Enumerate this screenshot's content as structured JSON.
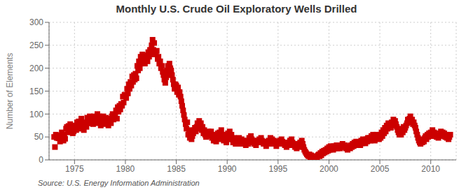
{
  "chart_data": {
    "type": "scatter",
    "title": "Monthly U.S. Crude Oil Exploratory Wells Drilled",
    "ylabel": "Number of Elements",
    "annotation": "Source: U.S. Energy Information Administration",
    "color": "#cc0000",
    "marker": "square",
    "grid": true,
    "xlim": [
      1972.5,
      2012.5
    ],
    "xticks": [
      1975,
      1980,
      1985,
      1990,
      1995,
      2000,
      2005,
      2010
    ],
    "ylim": [
      0,
      300
    ],
    "yticks": [
      0,
      50,
      100,
      150,
      200,
      250,
      300
    ],
    "x": [
      1973.0,
      1973.08,
      1973.17,
      1973.25,
      1973.33,
      1973.42,
      1973.5,
      1973.58,
      1973.67,
      1973.75,
      1973.83,
      1973.92,
      1974.0,
      1974.08,
      1974.17,
      1974.25,
      1974.33,
      1974.42,
      1974.5,
      1974.58,
      1974.67,
      1974.75,
      1974.83,
      1974.92,
      1975.0,
      1975.08,
      1975.17,
      1975.25,
      1975.33,
      1975.42,
      1975.5,
      1975.58,
      1975.67,
      1975.75,
      1975.83,
      1975.92,
      1976.0,
      1976.08,
      1976.17,
      1976.25,
      1976.33,
      1976.42,
      1976.5,
      1976.58,
      1976.67,
      1976.75,
      1976.83,
      1976.92,
      1977.0,
      1977.08,
      1977.17,
      1977.25,
      1977.33,
      1977.42,
      1977.5,
      1977.58,
      1977.67,
      1977.75,
      1977.83,
      1977.92,
      1978.0,
      1978.08,
      1978.17,
      1978.25,
      1978.33,
      1978.42,
      1978.5,
      1978.58,
      1978.67,
      1978.75,
      1978.83,
      1978.92,
      1979.0,
      1979.08,
      1979.17,
      1979.25,
      1979.33,
      1979.42,
      1979.5,
      1979.58,
      1979.67,
      1979.75,
      1979.83,
      1979.92,
      1980.0,
      1980.08,
      1980.17,
      1980.25,
      1980.33,
      1980.42,
      1980.5,
      1980.58,
      1980.67,
      1980.75,
      1980.83,
      1980.92,
      1981.0,
      1981.08,
      1981.17,
      1981.25,
      1981.33,
      1981.42,
      1981.5,
      1981.58,
      1981.67,
      1981.75,
      1981.83,
      1981.92,
      1982.0,
      1982.08,
      1982.17,
      1982.25,
      1982.33,
      1982.42,
      1982.5,
      1982.58,
      1982.67,
      1982.75,
      1982.83,
      1982.92,
      1983.0,
      1983.08,
      1983.17,
      1983.25,
      1983.33,
      1983.42,
      1983.5,
      1983.58,
      1983.67,
      1983.75,
      1983.83,
      1983.92,
      1984.0,
      1984.08,
      1984.17,
      1984.25,
      1984.33,
      1984.42,
      1984.5,
      1984.58,
      1984.67,
      1984.75,
      1984.83,
      1984.92,
      1985.0,
      1985.08,
      1985.17,
      1985.25,
      1985.33,
      1985.42,
      1985.5,
      1985.58,
      1985.67,
      1985.75,
      1985.83,
      1985.92,
      1986.0,
      1986.08,
      1986.17,
      1986.25,
      1986.33,
      1986.42,
      1986.5,
      1986.58,
      1986.67,
      1986.75,
      1986.83,
      1986.92,
      1987.0,
      1987.08,
      1987.17,
      1987.25,
      1987.33,
      1987.42,
      1987.5,
      1987.58,
      1987.67,
      1987.75,
      1987.83,
      1987.92,
      1988.0,
      1988.08,
      1988.17,
      1988.25,
      1988.33,
      1988.42,
      1988.5,
      1988.58,
      1988.67,
      1988.75,
      1988.83,
      1988.92,
      1989.0,
      1989.08,
      1989.17,
      1989.25,
      1989.33,
      1989.42,
      1989.5,
      1989.58,
      1989.67,
      1989.75,
      1989.83,
      1989.92,
      1990.0,
      1990.08,
      1990.17,
      1990.25,
      1990.33,
      1990.42,
      1990.5,
      1990.58,
      1990.67,
      1990.75,
      1990.83,
      1990.92,
      1991.0,
      1991.08,
      1991.17,
      1991.25,
      1991.33,
      1991.42,
      1991.5,
      1991.58,
      1991.67,
      1991.75,
      1991.83,
      1991.92,
      1992.0,
      1992.08,
      1992.17,
      1992.25,
      1992.33,
      1992.42,
      1992.5,
      1992.58,
      1992.67,
      1992.75,
      1992.83,
      1992.92,
      1993.0,
      1993.08,
      1993.17,
      1993.25,
      1993.33,
      1993.42,
      1993.5,
      1993.58,
      1993.67,
      1993.75,
      1993.83,
      1993.92,
      1994.0,
      1994.08,
      1994.17,
      1994.25,
      1994.33,
      1994.42,
      1994.5,
      1994.58,
      1994.67,
      1994.75,
      1994.83,
      1994.92,
      1995.0,
      1995.08,
      1995.17,
      1995.25,
      1995.33,
      1995.42,
      1995.5,
      1995.58,
      1995.67,
      1995.75,
      1995.83,
      1995.92,
      1996.0,
      1996.08,
      1996.17,
      1996.25,
      1996.33,
      1996.42,
      1996.5,
      1996.58,
      1996.67,
      1996.75,
      1996.83,
      1996.92,
      1997.0,
      1997.08,
      1997.17,
      1997.25,
      1997.33,
      1997.42,
      1997.5,
      1997.58,
      1997.67,
      1997.75,
      1997.83,
      1997.92,
      1998.0,
      1998.08,
      1998.17,
      1998.25,
      1998.33,
      1998.42,
      1998.5,
      1998.58,
      1998.67,
      1998.75,
      1998.83,
      1998.92,
      1999.0,
      1999.08,
      1999.17,
      1999.25,
      1999.33,
      1999.42,
      1999.5,
      1999.58,
      1999.67,
      1999.75,
      1999.83,
      1999.92,
      2000.0,
      2000.08,
      2000.17,
      2000.25,
      2000.33,
      2000.42,
      2000.5,
      2000.58,
      2000.67,
      2000.75,
      2000.83,
      2000.92,
      2001.0,
      2001.08,
      2001.17,
      2001.25,
      2001.33,
      2001.42,
      2001.5,
      2001.58,
      2001.67,
      2001.75,
      2001.83,
      2001.92,
      2002.0,
      2002.08,
      2002.17,
      2002.25,
      2002.33,
      2002.42,
      2002.5,
      2002.58,
      2002.67,
      2002.75,
      2002.83,
      2002.92,
      2003.0,
      2003.08,
      2003.17,
      2003.25,
      2003.33,
      2003.42,
      2003.5,
      2003.58,
      2003.67,
      2003.75,
      2003.83,
      2003.92,
      2004.0,
      2004.08,
      2004.17,
      2004.25,
      2004.33,
      2004.42,
      2004.5,
      2004.58,
      2004.67,
      2004.75,
      2004.83,
      2004.92,
      2005.0,
      2005.08,
      2005.17,
      2005.25,
      2005.33,
      2005.42,
      2005.5,
      2005.58,
      2005.67,
      2005.75,
      2005.83,
      2005.92,
      2006.0,
      2006.08,
      2006.17,
      2006.25,
      2006.33,
      2006.42,
      2006.5,
      2006.58,
      2006.67,
      2006.75,
      2006.83,
      2006.92,
      2007.0,
      2007.08,
      2007.17,
      2007.25,
      2007.33,
      2007.42,
      2007.5,
      2007.58,
      2007.67,
      2007.75,
      2007.83,
      2007.92,
      2008.0,
      2008.08,
      2008.17,
      2008.25,
      2008.33,
      2008.42,
      2008.5,
      2008.58,
      2008.67,
      2008.75,
      2008.83,
      2008.92,
      2009.0,
      2009.08,
      2009.17,
      2009.25,
      2009.33,
      2009.42,
      2009.5,
      2009.58,
      2009.67,
      2009.75,
      2009.83,
      2009.92,
      2010.0,
      2010.08,
      2010.17,
      2010.25,
      2010.33,
      2010.42,
      2010.5,
      2010.58,
      2010.67,
      2010.75,
      2010.83,
      2010.92,
      2011.0,
      2011.08,
      2011.17,
      2011.25,
      2011.33,
      2011.42,
      2011.5,
      2011.58,
      2011.67,
      2011.75,
      2011.83,
      2011.92
    ],
    "values": [
      50,
      28,
      55,
      48,
      52,
      47,
      53,
      40,
      50,
      60,
      44,
      42,
      55,
      46,
      68,
      72,
      65,
      74,
      60,
      78,
      68,
      70,
      58,
      62,
      75,
      72,
      65,
      82,
      80,
      84,
      78,
      68,
      90,
      70,
      80,
      65,
      75,
      82,
      72,
      92,
      80,
      88,
      95,
      80,
      85,
      92,
      78,
      95,
      88,
      92,
      80,
      100,
      85,
      95,
      90,
      75,
      92,
      85,
      95,
      78,
      82,
      92,
      80,
      85,
      75,
      88,
      90,
      80,
      95,
      100,
      88,
      98,
      95,
      108,
      90,
      115,
      105,
      118,
      110,
      122,
      118,
      138,
      125,
      142,
      142,
      135,
      155,
      145,
      165,
      155,
      170,
      162,
      182,
      170,
      185,
      175,
      188,
      178,
      205,
      195,
      215,
      200,
      225,
      210,
      230,
      215,
      225,
      210,
      218,
      228,
      215,
      235,
      225,
      240,
      230,
      250,
      262,
      240,
      255,
      235,
      230,
      238,
      220,
      225,
      210,
      215,
      200,
      205,
      192,
      185,
      175,
      168,
      180,
      195,
      205,
      185,
      210,
      200,
      195,
      185,
      175,
      165,
      155,
      165,
      162,
      148,
      158,
      142,
      148,
      138,
      128,
      118,
      108,
      98,
      88,
      78,
      68,
      82,
      55,
      65,
      48,
      55,
      45,
      52,
      58,
      65,
      70,
      62,
      72,
      80,
      68,
      85,
      75,
      80,
      65,
      72,
      58,
      65,
      55,
      50,
      58,
      52,
      62,
      55,
      58,
      62,
      48,
      55,
      42,
      50,
      45,
      40,
      52,
      58,
      45,
      60,
      52,
      65,
      55,
      48,
      42,
      55,
      45,
      38,
      52,
      58,
      45,
      62,
      50,
      55,
      45,
      38,
      48,
      42,
      35,
      40,
      42,
      38,
      48,
      42,
      35,
      45,
      38,
      42,
      35,
      40,
      32,
      38,
      42,
      35,
      48,
      40,
      52,
      45,
      38,
      42,
      35,
      40,
      32,
      38,
      42,
      38,
      45,
      40,
      48,
      42,
      38,
      35,
      40,
      35,
      30,
      35,
      38,
      42,
      35,
      48,
      40,
      45,
      38,
      42,
      35,
      38,
      30,
      35,
      40,
      35,
      42,
      38,
      45,
      40,
      35,
      38,
      32,
      35,
      28,
      32,
      38,
      32,
      42,
      35,
      45,
      38,
      32,
      35,
      28,
      32,
      25,
      30,
      35,
      28,
      38,
      32,
      42,
      35,
      28,
      22,
      18,
      15,
      12,
      10,
      8,
      12,
      6,
      10,
      5,
      8,
      4,
      7,
      5,
      8,
      6,
      10,
      12,
      8,
      15,
      10,
      18,
      14,
      20,
      16,
      22,
      18,
      25,
      20,
      28,
      22,
      30,
      25,
      28,
      22,
      30,
      25,
      28,
      32,
      25,
      30,
      28,
      25,
      32,
      28,
      35,
      30,
      28,
      32,
      25,
      28,
      22,
      28,
      30,
      25,
      32,
      28,
      35,
      30,
      38,
      32,
      40,
      35,
      38,
      32,
      38,
      32,
      42,
      36,
      45,
      38,
      42,
      36,
      45,
      40,
      48,
      42,
      48,
      42,
      52,
      45,
      55,
      48,
      42,
      50,
      55,
      48,
      52,
      45,
      55,
      48,
      60,
      52,
      65,
      58,
      70,
      62,
      75,
      68,
      80,
      72,
      78,
      70,
      82,
      75,
      88,
      80,
      85,
      78,
      72,
      65,
      60,
      55,
      62,
      55,
      68,
      60,
      72,
      65,
      70,
      75,
      80,
      88,
      82,
      90,
      95,
      85,
      88,
      78,
      82,
      75,
      70,
      62,
      55,
      48,
      42,
      38,
      35,
      42,
      38,
      45,
      40,
      48,
      52,
      45,
      55,
      50,
      58,
      52,
      60,
      52,
      65,
      55,
      60,
      52,
      58,
      50,
      55,
      48,
      52,
      58,
      62,
      55,
      60,
      52,
      58,
      50,
      55,
      48,
      52,
      45,
      50,
      55
    ]
  }
}
